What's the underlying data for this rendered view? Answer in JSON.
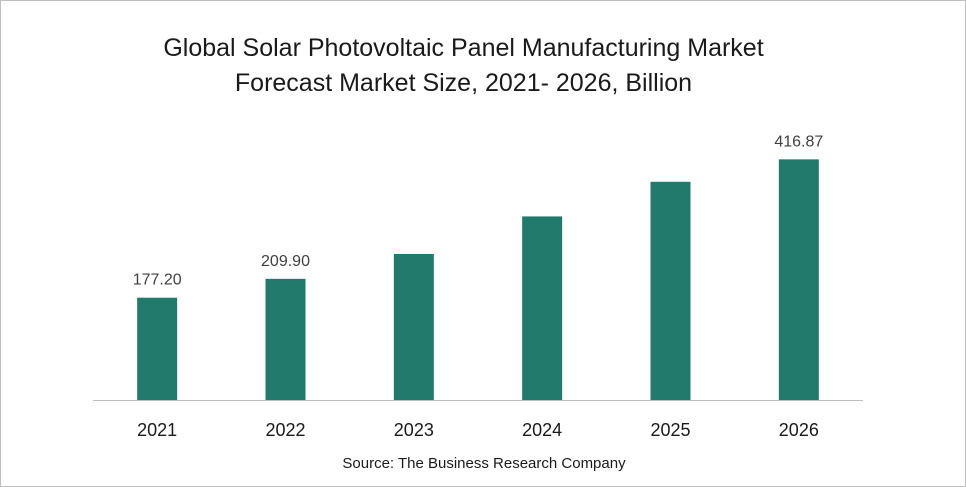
{
  "chart_data": {
    "type": "bar",
    "title_lines": [
      "Global Solar Photovoltaic Panel Manufacturing Market",
      "Forecast Market Size, 2021- 2026, Billion"
    ],
    "categories": [
      "2021",
      "2022",
      "2023",
      "2024",
      "2025",
      "2026"
    ],
    "values": [
      177.2,
      209.9,
      253.0,
      318.0,
      378.0,
      416.87
    ],
    "data_labels": [
      "177.20",
      "209.90",
      "",
      "",
      "",
      "416.87"
    ],
    "ylim": [
      0,
      440
    ],
    "bar_color": "#217a6b",
    "axis_color": "#bfbfbf",
    "grid": false,
    "legend": "none",
    "xlabel": "",
    "ylabel": ""
  },
  "source": "Source: The Business Research Company"
}
